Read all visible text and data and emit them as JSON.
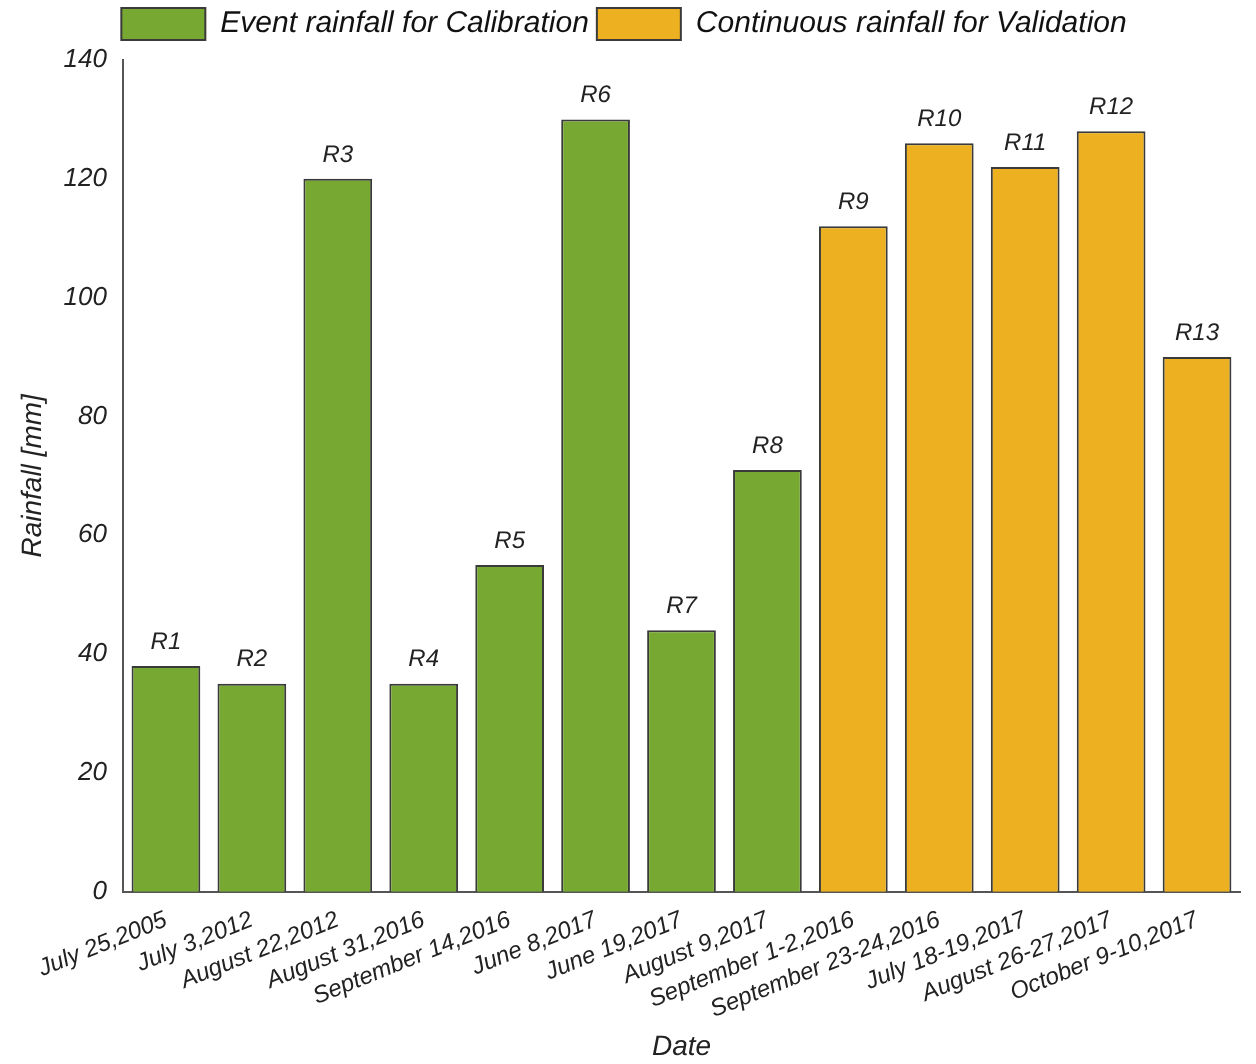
{
  "chart_data": {
    "type": "bar",
    "xlabel": "Date",
    "ylabel": "Rainfall [mm]",
    "categories": [
      "July 25,2005",
      "July 3,2012",
      "August 22,2012",
      "August 31,2016",
      "September 14,2016",
      "June 8,2017",
      "June 19,2017",
      "August 9,2017",
      "September 1-2,2016",
      "September 23-24,2016",
      "July 18-19,2017",
      "August 26-27,2017",
      "October 9-10,2017"
    ],
    "series": [
      {
        "name": "Event rainfall for Calibration",
        "color": "#77a832",
        "values": [
          38,
          35,
          120,
          35,
          55,
          130,
          44,
          71,
          null,
          null,
          null,
          null,
          null
        ],
        "value_labels": [
          "R1",
          "R2",
          "R3",
          "R4",
          "R5",
          "R6",
          "R7",
          "R8",
          null,
          null,
          null,
          null,
          null
        ]
      },
      {
        "name": "Continuous rainfall for Validation",
        "color": "#ecb020",
        "values": [
          null,
          null,
          null,
          null,
          null,
          null,
          null,
          null,
          112,
          126,
          122,
          128,
          90
        ],
        "value_labels": [
          null,
          null,
          null,
          null,
          null,
          null,
          null,
          null,
          "R9",
          "R10",
          "R11",
          "R12",
          "R13"
        ]
      }
    ],
    "ylim": [
      0,
      140
    ],
    "yticks": [
      0,
      20,
      40,
      60,
      80,
      100,
      120,
      140
    ],
    "grid": false,
    "legend": "top"
  }
}
